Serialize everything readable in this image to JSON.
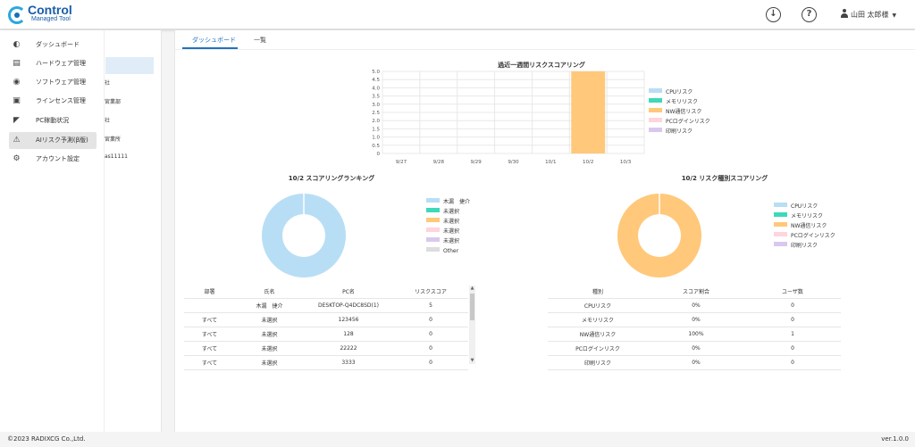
{
  "app": {
    "logo_text": "Control",
    "logo_sub": "Managed Tool"
  },
  "header": {
    "download_icon": "download-icon",
    "help_icon": "help-icon",
    "help_glyph": "?",
    "user_name": "山田 太郎様"
  },
  "sidebar": {
    "items": [
      {
        "label": "ダッシュボード",
        "icon": "speedometer-icon"
      },
      {
        "label": "ハードウェア管理",
        "icon": "laptop-icon"
      },
      {
        "label": "ソフトウェア管理",
        "icon": "disc-icon"
      },
      {
        "label": "ラインセンス管理",
        "icon": "certificate-icon"
      },
      {
        "label": "PC稼動状況",
        "icon": "area-chart-icon"
      },
      {
        "label": "AIリスク予測(β版)",
        "icon": "alert-icon"
      },
      {
        "label": "アカウント設定",
        "icon": "user-settings-icon"
      }
    ],
    "active_index": 5
  },
  "subpane": {
    "fragments": [
      "社",
      "宮業部",
      "社",
      "宮業所",
      "as11111"
    ]
  },
  "tabs": [
    {
      "label": "ダッシュボード"
    },
    {
      "label": "一覧"
    }
  ],
  "risk_series_colors": {
    "cpu": "#b8def5",
    "memory": "#3dd9b8",
    "nw": "#ffc87a",
    "pc_login": "#ffd4dd",
    "print": "#d9c8ee",
    "other": "#dddddd"
  },
  "weekly_chart": {
    "title": "過近一週間リスクスコアリング",
    "legend": [
      "CPUリスク",
      "メモリリスク",
      "NW通信リスク",
      "PCログインリスク",
      "印刷リスク"
    ]
  },
  "ranking_chart": {
    "title": "10/2 スコアリングランキング",
    "legend": [
      "木漏　捷介",
      "未選択",
      "未選択",
      "未選択",
      "未選択",
      "Other"
    ]
  },
  "type_chart": {
    "title": "10/2 リスク種別スコアリング",
    "legend": [
      "CPUリスク",
      "メモリリスク",
      "NW通信リスク",
      "PCログインリスク",
      "印刷リスク"
    ]
  },
  "chart_data": [
    {
      "type": "bar",
      "title": "過近一週間リスクスコアリング",
      "categories": [
        "9/27",
        "9/28",
        "9/29",
        "9/30",
        "10/1",
        "10/2",
        "10/3"
      ],
      "series": [
        {
          "name": "CPUリスク",
          "values": [
            0,
            0,
            0,
            0,
            0,
            0,
            0
          ]
        },
        {
          "name": "メモリリスク",
          "values": [
            0,
            0,
            0,
            0,
            0,
            0,
            0
          ]
        },
        {
          "name": "NW通信リスク",
          "values": [
            0,
            0,
            0,
            0,
            0,
            5,
            0
          ]
        },
        {
          "name": "PCログインリスク",
          "values": [
            0,
            0,
            0,
            0,
            0,
            0,
            0
          ]
        },
        {
          "name": "印刷リスク",
          "values": [
            0,
            0,
            0,
            0,
            0,
            0,
            0
          ]
        }
      ],
      "ylim": [
        0,
        5
      ],
      "yticks": [
        "0",
        "0.5",
        "1.0",
        "1.5",
        "2.0",
        "2.5",
        "3.0",
        "3.5",
        "4.0",
        "4.5",
        "5.0"
      ],
      "stacked": true,
      "grid": true,
      "legend_position": "right"
    },
    {
      "type": "pie",
      "style": "donut",
      "title": "10/2 スコアリングランキング",
      "labels": [
        "木漏　捷介",
        "未選択",
        "未選択",
        "未選択",
        "未選択",
        "Other"
      ],
      "values": [
        5,
        0,
        0,
        0,
        0,
        0
      ],
      "legend_position": "right"
    },
    {
      "type": "pie",
      "style": "donut",
      "title": "10/2 リスク種別スコアリング",
      "labels": [
        "CPUリスク",
        "メモリリスク",
        "NW通信リスク",
        "PCログインリスク",
        "印刷リスク"
      ],
      "values": [
        0,
        0,
        100,
        0,
        0
      ],
      "legend_position": "right"
    }
  ],
  "ranking_table": {
    "headers": [
      "部署",
      "氏名",
      "PC名",
      "リスクスコア"
    ],
    "rows": [
      [
        "",
        "木漏　捷介",
        "DESKTOP-Q4DC8SD(1)",
        "5"
      ],
      [
        "すべて",
        "未選択",
        "123456",
        "0"
      ],
      [
        "すべて",
        "未選択",
        "128",
        "0"
      ],
      [
        "すべて",
        "未選択",
        "22222",
        "0"
      ],
      [
        "すべて",
        "未選択",
        "3333",
        "0"
      ]
    ],
    "scroll_position": 0.15
  },
  "type_table": {
    "headers": [
      "種別",
      "スコア割合",
      "ユーザ数"
    ],
    "rows": [
      [
        "CPUリスク",
        "0%",
        "0"
      ],
      [
        "メモリリスク",
        "0%",
        "0"
      ],
      [
        "NW通信リスク",
        "100%",
        "1"
      ],
      [
        "PCログインリスク",
        "0%",
        "0"
      ],
      [
        "印刷リスク",
        "0%",
        "0"
      ]
    ]
  },
  "footer": {
    "copyright": "©2023 RADIXCG Co.,Ltd.",
    "version": "ver.1.0.0"
  }
}
